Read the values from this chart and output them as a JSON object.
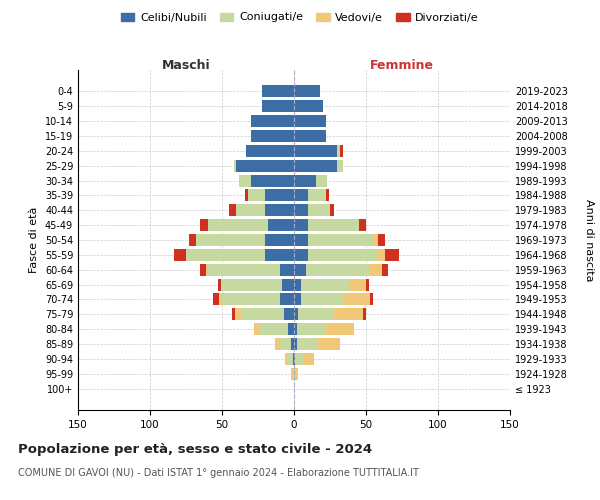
{
  "age_groups": [
    "100+",
    "95-99",
    "90-94",
    "85-89",
    "80-84",
    "75-79",
    "70-74",
    "65-69",
    "60-64",
    "55-59",
    "50-54",
    "45-49",
    "40-44",
    "35-39",
    "30-34",
    "25-29",
    "20-24",
    "15-19",
    "10-14",
    "5-9",
    "0-4"
  ],
  "birth_years": [
    "≤ 1923",
    "1924-1928",
    "1929-1933",
    "1934-1938",
    "1939-1943",
    "1944-1948",
    "1949-1953",
    "1954-1958",
    "1959-1963",
    "1964-1968",
    "1969-1973",
    "1974-1978",
    "1979-1983",
    "1984-1988",
    "1989-1993",
    "1994-1998",
    "1999-2003",
    "2004-2008",
    "2009-2013",
    "2014-2018",
    "2019-2023"
  ],
  "male_celibi": [
    0,
    0,
    1,
    2,
    4,
    7,
    10,
    8,
    10,
    20,
    20,
    18,
    20,
    20,
    30,
    40,
    33,
    30,
    30,
    22,
    22
  ],
  "male_coniugati": [
    0,
    1,
    3,
    8,
    20,
    30,
    40,
    42,
    50,
    55,
    48,
    42,
    20,
    12,
    8,
    2,
    0,
    0,
    0,
    0,
    0
  ],
  "male_vedovi": [
    0,
    1,
    2,
    3,
    4,
    4,
    2,
    1,
    1,
    0,
    0,
    0,
    0,
    0,
    0,
    0,
    0,
    0,
    0,
    0,
    0
  ],
  "male_divorziati": [
    0,
    0,
    0,
    0,
    0,
    2,
    4,
    2,
    4,
    8,
    5,
    5,
    5,
    2,
    0,
    0,
    0,
    0,
    0,
    0,
    0
  ],
  "female_nubili": [
    0,
    0,
    1,
    2,
    2,
    3,
    5,
    5,
    8,
    10,
    10,
    10,
    10,
    10,
    15,
    30,
    30,
    22,
    22,
    20,
    18
  ],
  "female_coniugate": [
    0,
    1,
    5,
    15,
    20,
    25,
    30,
    33,
    45,
    48,
    45,
    35,
    15,
    12,
    8,
    4,
    2,
    0,
    0,
    0,
    0
  ],
  "female_vedove": [
    0,
    2,
    8,
    15,
    20,
    20,
    18,
    12,
    8,
    5,
    3,
    0,
    0,
    0,
    0,
    0,
    0,
    0,
    0,
    0,
    0
  ],
  "female_divorziate": [
    0,
    0,
    0,
    0,
    0,
    2,
    2,
    2,
    4,
    10,
    5,
    5,
    3,
    2,
    0,
    0,
    2,
    0,
    0,
    0,
    0
  ],
  "colors": {
    "celibi_nubili": "#3c6ea5",
    "coniugati": "#c5d9a0",
    "vedovi": "#f0c878",
    "divorziati": "#d03020"
  },
  "xlim": 150,
  "title": "Popolazione per età, sesso e stato civile - 2024",
  "subtitle": "COMUNE DI GAVOI (NU) - Dati ISTAT 1° gennaio 2024 - Elaborazione TUTTITALIA.IT",
  "ylabel_left": "Fasce di età",
  "ylabel_right": "Anni di nascita",
  "xlabel_left": "Maschi",
  "xlabel_right": "Femmine",
  "legend_labels": [
    "Celibi/Nubili",
    "Coniugati/e",
    "Vedovi/e",
    "Divorziati/e"
  ],
  "background_color": "#ffffff",
  "grid_color": "#cccccc"
}
